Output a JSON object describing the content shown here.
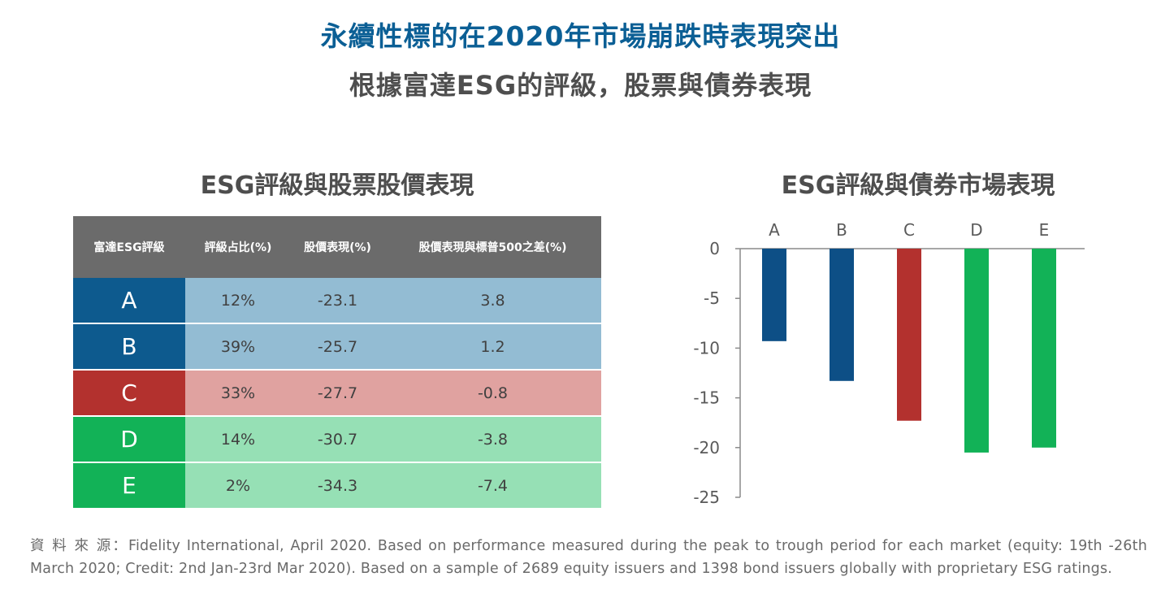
{
  "header": {
    "title": "永續性標的在2020年市場崩跌時表現突出",
    "subtitle": "根據富達ESG的評級，股票與債券表現"
  },
  "table": {
    "title": "ESG評級與股票股價表現",
    "columns": [
      "富達ESG評級",
      "評級占比(%)",
      "股價表現(%)",
      "股價表現與標普500之差(%)"
    ],
    "rows": [
      {
        "rating": "A",
        "share": "12%",
        "performance": "-23.1",
        "diff": "3.8",
        "rating_color": "#0d5a8e",
        "row_color": "#93bcd3"
      },
      {
        "rating": "B",
        "share": "39%",
        "performance": "-25.7",
        "diff": "1.2",
        "rating_color": "#0d5a8e",
        "row_color": "#93bcd3"
      },
      {
        "rating": "C",
        "share": "33%",
        "performance": "-27.7",
        "diff": "-0.8",
        "rating_color": "#b3312e",
        "row_color": "#e0a2a0"
      },
      {
        "rating": "D",
        "share": "14%",
        "performance": "-30.7",
        "diff": "-3.8",
        "rating_color": "#12b257",
        "row_color": "#96e0b5"
      },
      {
        "rating": "E",
        "share": "2%",
        "performance": "-34.3",
        "diff": "-7.4",
        "rating_color": "#12b257",
        "row_color": "#96e0b5"
      }
    ]
  },
  "chart_data": {
    "type": "bar",
    "title": "ESG評級與債券市場表現",
    "categories": [
      "A",
      "B",
      "C",
      "D",
      "E"
    ],
    "values": [
      -9.3,
      -13.3,
      -17.3,
      -20.5,
      -20.0
    ],
    "colors": [
      "#0d4f86",
      "#0d4f86",
      "#b3312e",
      "#12b257",
      "#12b257"
    ],
    "ylim": [
      -25,
      0
    ],
    "yticks": [
      0,
      -5,
      -10,
      -15,
      -20,
      -25
    ],
    "xlabel": "",
    "ylabel": "",
    "category_axis_position": "top",
    "grid": false
  },
  "footer": {
    "source": "資 料 來 源：Fidelity International, April 2020. Based on performance measured during the peak to trough period for each market (equity: 19th -26th March 2020; Credit: 2nd Jan-23rd Mar 2020). Based on a sample of 2689 equity issuers and 1398 bond issuers globally with proprietary ESG ratings."
  }
}
